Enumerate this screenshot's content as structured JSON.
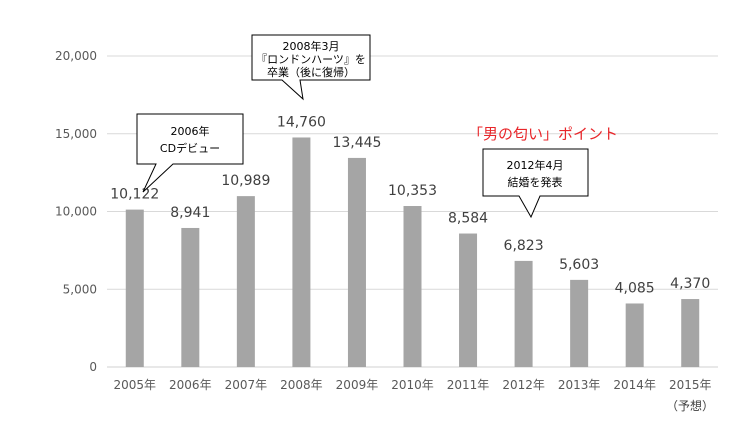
{
  "chart_data": {
    "type": "bar",
    "categories": [
      "2005年",
      "2006年",
      "2007年",
      "2008年",
      "2009年",
      "2010年",
      "2011年",
      "2012年",
      "2013年",
      "2014年",
      "2015年"
    ],
    "values": [
      10122,
      8941,
      10989,
      14760,
      13445,
      10353,
      8584,
      6823,
      5603,
      4085,
      4370
    ],
    "value_labels": [
      "10,122",
      "8,941",
      "10,989",
      "14,760",
      "13,445",
      "10,353",
      "8,584",
      "6,823",
      "5,603",
      "4,085",
      "4,370"
    ],
    "y_ticks": [
      0,
      5000,
      10000,
      15000,
      20000
    ],
    "y_tick_labels": [
      "0",
      "5,000",
      "10,000",
      "15,000",
      "20,000"
    ],
    "ylim": [
      0,
      20000
    ],
    "grid": true,
    "bar_color": "#a5a5a5",
    "note_2015": "（予想）",
    "headline": "「男の匂い」ポイント",
    "headline_color": "#e8262a",
    "callouts": [
      {
        "lines": [
          "2006年",
          "CDデビュー"
        ]
      },
      {
        "lines": [
          "2008年3月",
          "『ロンドンハーツ』を",
          "卒業（後に復帰）"
        ]
      },
      {
        "lines": [
          "2012年4月",
          "結婚を発表"
        ]
      }
    ]
  }
}
